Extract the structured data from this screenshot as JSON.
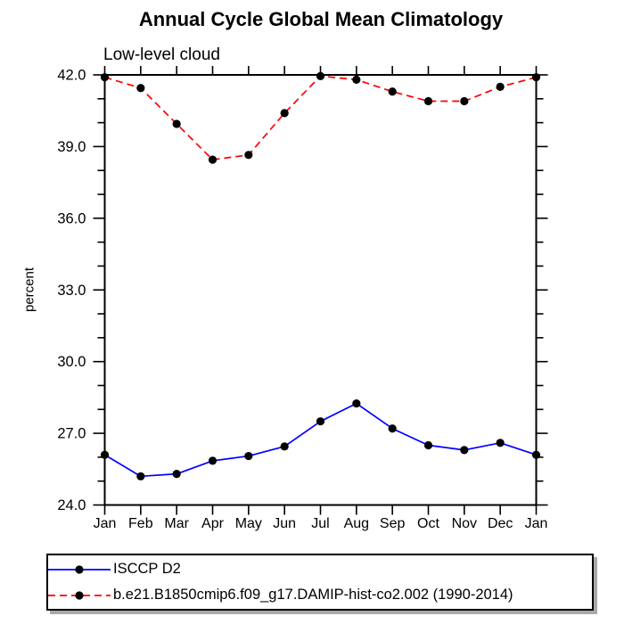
{
  "chart_data": {
    "type": "line",
    "title": "Annual Cycle Global Mean Climatology",
    "subtitle": "Low-level cloud",
    "xlabel": "",
    "ylabel": "percent",
    "categories": [
      "Jan",
      "Feb",
      "Mar",
      "Apr",
      "May",
      "Jun",
      "Jul",
      "Aug",
      "Sep",
      "Oct",
      "Nov",
      "Dec",
      "Jan"
    ],
    "ylim": [
      24,
      42
    ],
    "ytick_major_step": 3,
    "ytick_minor_step": 1,
    "ytick_labels": [
      "24.0",
      "27.0",
      "30.0",
      "33.0",
      "36.0",
      "39.0",
      "42.0"
    ],
    "grid": false,
    "legend_position": "bottom-left-box",
    "frame_color": "#000000",
    "marker_color": "#000000",
    "series": [
      {
        "name": "ISCCP D2",
        "color": "#0000ff",
        "line_style": "solid",
        "marker": "circle",
        "values": [
          26.1,
          25.2,
          25.3,
          25.85,
          26.05,
          26.45,
          27.5,
          28.25,
          27.2,
          26.5,
          26.3,
          26.6,
          26.1
        ]
      },
      {
        "name": "b.e21.B1850cmip6.f09_g17.DAMIP-hist-co2.002 (1990-2014)",
        "color": "#ff0000",
        "line_style": "dashed",
        "marker": "circle",
        "values": [
          41.9,
          41.45,
          39.95,
          38.45,
          38.65,
          40.4,
          41.95,
          41.8,
          41.3,
          40.9,
          40.9,
          41.5,
          41.9
        ]
      }
    ]
  }
}
